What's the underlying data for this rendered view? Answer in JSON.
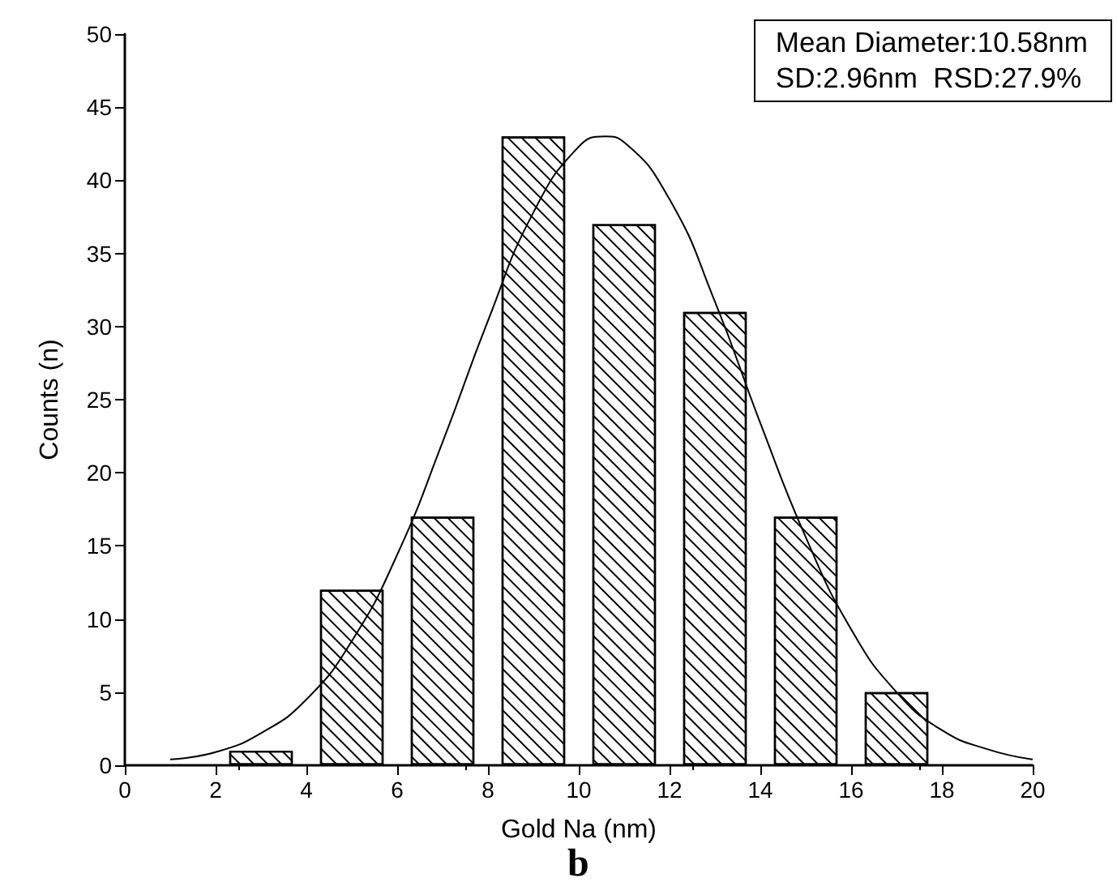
{
  "chart_data": {
    "type": "histogram",
    "xlabel": "Gold Na (nm)",
    "ylabel": "Counts (n)",
    "annotations": [
      "Mean Diameter:10.58nm",
      "SD:2.96nm  RSD:27.9%",
      "b"
    ],
    "bins": [
      2,
      4,
      6,
      8,
      10,
      12,
      14,
      16,
      18
    ],
    "values": [
      1,
      12,
      17,
      43,
      37,
      31,
      17,
      5
    ],
    "color": "#000000",
    "series": [
      {
        "type": "line",
        "color": "#000000",
        "x": [
          1,
          2,
          3,
          4,
          5,
          6,
          7,
          8,
          9,
          10,
          10.58,
          11,
          12,
          13,
          14,
          15,
          16,
          17,
          18,
          19,
          20
        ],
        "values": [
          0.4,
          0.9,
          2.2,
          4.5,
          8.5,
          14.4,
          22.1,
          30.4,
          37.8,
          42.3,
          43,
          42.6,
          38.7,
          31.7,
          23.4,
          15.6,
          9.3,
          5.0,
          2.4,
          1.1,
          0.4
        ]
      }
    ],
    "xlim": [
      0,
      20
    ],
    "xticks": [
      0,
      2,
      4,
      6,
      8,
      10,
      12,
      14,
      16,
      18,
      20
    ],
    "ylim": [
      0,
      50
    ],
    "yticks": [
      0,
      5,
      10,
      15,
      20,
      25,
      30,
      35,
      40,
      45,
      50
    ],
    "grid": false,
    "marker": "none",
    "line_style": "solid"
  }
}
